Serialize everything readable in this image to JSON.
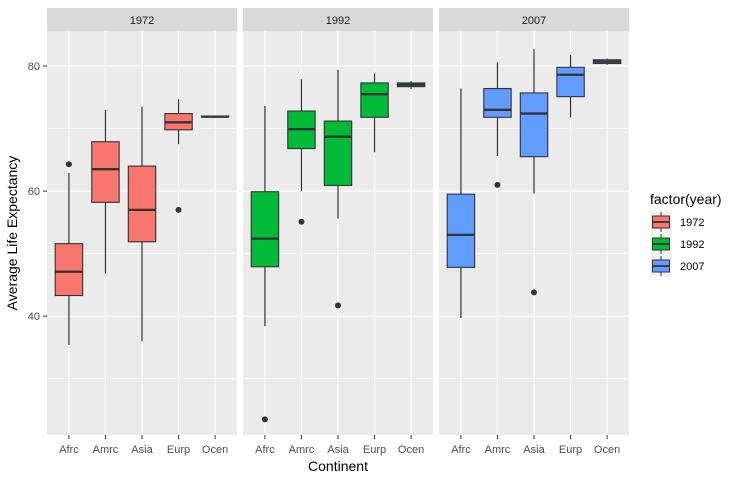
{
  "chart_data": {
    "type": "boxplot",
    "xlabel": "Continent",
    "ylabel": "Average Life Expectancy",
    "ylim": [
      21,
      85.6
    ],
    "yticks": [
      40,
      60,
      80
    ],
    "grid": true,
    "categories": [
      "Afrc",
      "Amrc",
      "Asia",
      "Eurp",
      "Ocen"
    ],
    "legend": {
      "title": "factor(year)",
      "position": "right"
    },
    "colors": {
      "1972": "#F8766D",
      "1992": "#00BA38",
      "2007": "#619CFF"
    },
    "facets": [
      {
        "label": "1972",
        "series": "1972",
        "boxes": [
          {
            "cat": "Afrc",
            "lower": 35.4,
            "q1": 43.3,
            "median": 47.1,
            "q3": 51.6,
            "upper": 62.9,
            "outliers": [
              64.3
            ]
          },
          {
            "cat": "Amrc",
            "lower": 46.8,
            "q1": 58.2,
            "median": 63.5,
            "q3": 67.9,
            "upper": 73.0,
            "outliers": []
          },
          {
            "cat": "Asia",
            "lower": 36.0,
            "q1": 51.9,
            "median": 57.0,
            "q3": 64.0,
            "upper": 73.5,
            "outliers": []
          },
          {
            "cat": "Eurp",
            "lower": 67.5,
            "q1": 69.8,
            "median": 71.0,
            "q3": 72.4,
            "upper": 74.7,
            "outliers": [
              57.0
            ]
          },
          {
            "cat": "Ocen",
            "lower": 71.9,
            "q1": 71.9,
            "median": 71.9,
            "q3": 72.0,
            "upper": 72.0,
            "outliers": []
          }
        ]
      },
      {
        "label": "1992",
        "series": "1992",
        "boxes": [
          {
            "cat": "Afrc",
            "lower": 38.4,
            "q1": 47.9,
            "median": 52.4,
            "q3": 59.9,
            "upper": 73.6,
            "outliers": [
              23.5
            ]
          },
          {
            "cat": "Amrc",
            "lower": 60.0,
            "q1": 66.8,
            "median": 69.9,
            "q3": 72.8,
            "upper": 77.9,
            "outliers": [
              55.1
            ]
          },
          {
            "cat": "Asia",
            "lower": 55.6,
            "q1": 60.9,
            "median": 68.7,
            "q3": 71.2,
            "upper": 79.4,
            "outliers": [
              41.7
            ]
          },
          {
            "cat": "Eurp",
            "lower": 66.2,
            "q1": 71.8,
            "median": 75.5,
            "q3": 77.3,
            "upper": 78.8,
            "outliers": []
          },
          {
            "cat": "Ocen",
            "lower": 76.3,
            "q1": 76.7,
            "median": 77.0,
            "q3": 77.3,
            "upper": 77.6,
            "outliers": []
          }
        ]
      },
      {
        "label": "2007",
        "series": "2007",
        "boxes": [
          {
            "cat": "Afrc",
            "lower": 39.7,
            "q1": 47.8,
            "median": 53.0,
            "q3": 59.5,
            "upper": 76.4,
            "outliers": []
          },
          {
            "cat": "Amrc",
            "lower": 65.6,
            "q1": 71.8,
            "median": 73.0,
            "q3": 76.4,
            "upper": 80.6,
            "outliers": [
              61.0
            ]
          },
          {
            "cat": "Asia",
            "lower": 59.6,
            "q1": 65.5,
            "median": 72.4,
            "q3": 75.7,
            "upper": 82.7,
            "outliers": [
              43.8
            ]
          },
          {
            "cat": "Eurp",
            "lower": 71.8,
            "q1": 75.1,
            "median": 78.6,
            "q3": 79.8,
            "upper": 81.8,
            "outliers": []
          },
          {
            "cat": "Ocen",
            "lower": 80.2,
            "q1": 80.4,
            "median": 80.7,
            "q3": 81.0,
            "upper": 81.2,
            "outliers": []
          }
        ]
      }
    ]
  }
}
